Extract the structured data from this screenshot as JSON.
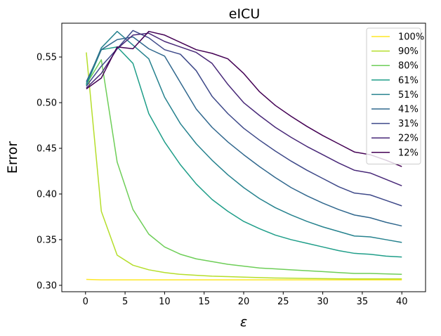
{
  "chart_data": {
    "type": "line",
    "title": "eICU",
    "xlabel": "ε",
    "ylabel": "Error",
    "xlim": [
      -3,
      43
    ],
    "ylim": [
      0.293,
      0.587
    ],
    "xticks": [
      0,
      5,
      10,
      15,
      20,
      25,
      30,
      35,
      40
    ],
    "yticks": [
      0.3,
      0.35,
      0.4,
      0.45,
      0.5,
      0.55
    ],
    "xtick_labels": [
      "0",
      "5",
      "10",
      "15",
      "20",
      "25",
      "30",
      "35",
      "40"
    ],
    "ytick_labels": [
      "0.30",
      "0.35",
      "0.40",
      "0.45",
      "0.50",
      "0.55"
    ],
    "grid": false,
    "legend_position": "top-right",
    "series": [
      {
        "name": "100%",
        "color": "#fde725",
        "x": [
          0.1,
          2,
          4,
          6,
          8,
          10,
          12,
          14,
          16,
          18,
          20,
          22,
          24,
          26,
          28,
          30,
          32,
          34,
          36,
          38,
          40
        ],
        "y": [
          0.3065,
          0.306,
          0.306,
          0.306,
          0.306,
          0.306,
          0.306,
          0.306,
          0.306,
          0.306,
          0.306,
          0.306,
          0.306,
          0.306,
          0.306,
          0.306,
          0.306,
          0.306,
          0.306,
          0.306,
          0.306
        ]
      },
      {
        "name": "90%",
        "color": "#b5de2b",
        "x": [
          0.1,
          2,
          4,
          6,
          8,
          10,
          12,
          14,
          16,
          18,
          20,
          22,
          24,
          26,
          28,
          30,
          32,
          34,
          36,
          38,
          40
        ],
        "y": [
          0.555,
          0.381,
          0.333,
          0.322,
          0.317,
          0.314,
          0.312,
          0.311,
          0.31,
          0.3095,
          0.309,
          0.3085,
          0.308,
          0.3078,
          0.3075,
          0.3073,
          0.3071,
          0.307,
          0.307,
          0.307,
          0.307
        ]
      },
      {
        "name": "80%",
        "color": "#6ece58",
        "x": [
          0.1,
          2,
          4,
          6,
          8,
          10,
          12,
          14,
          16,
          18,
          20,
          22,
          24,
          26,
          28,
          30,
          32,
          34,
          36,
          38,
          40
        ],
        "y": [
          0.52,
          0.547,
          0.435,
          0.383,
          0.356,
          0.342,
          0.334,
          0.329,
          0.326,
          0.323,
          0.321,
          0.319,
          0.318,
          0.317,
          0.316,
          0.315,
          0.314,
          0.313,
          0.313,
          0.3125,
          0.312
        ]
      },
      {
        "name": "61%",
        "color": "#1f9e89",
        "x": [
          0.1,
          2,
          4,
          6,
          8,
          10,
          12,
          14,
          16,
          18,
          20,
          22,
          24,
          26,
          28,
          30,
          32,
          34,
          36,
          38,
          40
        ],
        "y": [
          0.519,
          0.558,
          0.561,
          0.543,
          0.488,
          0.457,
          0.432,
          0.411,
          0.394,
          0.381,
          0.37,
          0.362,
          0.355,
          0.35,
          0.346,
          0.342,
          0.338,
          0.335,
          0.334,
          0.332,
          0.331
        ]
      },
      {
        "name": "51%",
        "color": "#26828e",
        "x": [
          0.1,
          2,
          4,
          6,
          8,
          10,
          12,
          14,
          16,
          18,
          20,
          22,
          24,
          26,
          28,
          30,
          32,
          34,
          36,
          38,
          40
        ],
        "y": [
          0.521,
          0.56,
          0.578,
          0.563,
          0.548,
          0.506,
          0.477,
          0.455,
          0.437,
          0.421,
          0.407,
          0.395,
          0.385,
          0.377,
          0.37,
          0.364,
          0.359,
          0.354,
          0.353,
          0.35,
          0.347
        ]
      },
      {
        "name": "41%",
        "color": "#31688e",
        "x": [
          0.1,
          2,
          4,
          6,
          8,
          10,
          12,
          14,
          16,
          18,
          20,
          22,
          24,
          26,
          28,
          30,
          32,
          34,
          36,
          38,
          40
        ],
        "y": [
          0.523,
          0.558,
          0.569,
          0.572,
          0.559,
          0.551,
          0.522,
          0.493,
          0.473,
          0.457,
          0.443,
          0.43,
          0.418,
          0.407,
          0.398,
          0.39,
          0.383,
          0.377,
          0.374,
          0.369,
          0.365
        ]
      },
      {
        "name": "31%",
        "color": "#3e4989",
        "x": [
          0.1,
          2,
          4,
          6,
          8,
          10,
          12,
          14,
          16,
          18,
          20,
          22,
          24,
          26,
          28,
          30,
          32,
          34,
          36,
          38,
          40
        ],
        "y": [
          0.518,
          0.54,
          0.559,
          0.579,
          0.571,
          0.558,
          0.553,
          0.535,
          0.507,
          0.488,
          0.472,
          0.459,
          0.447,
          0.436,
          0.426,
          0.417,
          0.408,
          0.401,
          0.399,
          0.393,
          0.387
        ]
      },
      {
        "name": "22%",
        "color": "#482878",
        "x": [
          0.1,
          2,
          4,
          6,
          8,
          10,
          12,
          14,
          16,
          18,
          20,
          22,
          24,
          26,
          28,
          30,
          32,
          34,
          36,
          38,
          40
        ],
        "y": [
          0.516,
          0.532,
          0.559,
          0.574,
          0.576,
          0.567,
          0.561,
          0.555,
          0.543,
          0.52,
          0.5,
          0.486,
          0.473,
          0.462,
          0.452,
          0.443,
          0.434,
          0.426,
          0.423,
          0.416,
          0.409
        ]
      },
      {
        "name": "12%",
        "color": "#440154",
        "x": [
          0.1,
          2,
          4,
          6,
          8,
          10,
          12,
          14,
          16,
          18,
          20,
          22,
          24,
          26,
          28,
          30,
          32,
          34,
          36,
          38,
          40
        ],
        "y": [
          0.515,
          0.527,
          0.561,
          0.559,
          0.578,
          0.574,
          0.566,
          0.558,
          0.554,
          0.548,
          0.532,
          0.512,
          0.497,
          0.485,
          0.474,
          0.464,
          0.455,
          0.446,
          0.443,
          0.437,
          0.43
        ]
      }
    ]
  }
}
